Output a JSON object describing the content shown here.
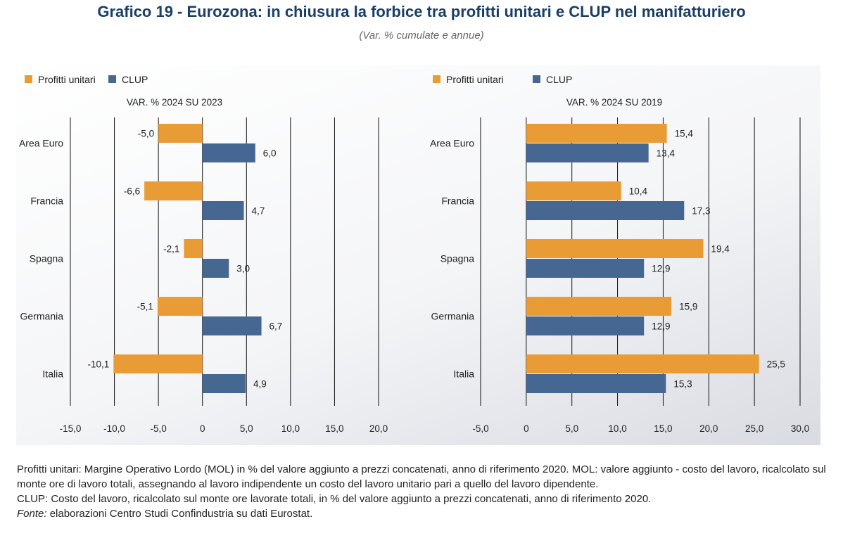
{
  "title": "Grafico 19 - Eurozona: in chiusura la forbice tra profitti unitari e CLUP nel manifatturiero",
  "subtitle": "(Var. % cumulate e annue)",
  "colors": {
    "profitti": "#e99b36",
    "clup": "#466792",
    "grid": "#111111"
  },
  "chart_data": [
    {
      "type": "bar",
      "orientation": "horizontal",
      "title": "VAR. % 2024 SU 2023",
      "categories": [
        "Area Euro",
        "Francia",
        "Spagna",
        "Germania",
        "Italia"
      ],
      "series": [
        {
          "name": "Profitti unitari",
          "values": [
            -5.0,
            -6.6,
            -2.1,
            -5.1,
            -10.1
          ],
          "labels": [
            "-5,0",
            "-6,6",
            "-2,1",
            "-5,1",
            "-10,1"
          ]
        },
        {
          "name": "CLUP",
          "values": [
            6.0,
            4.7,
            3.0,
            6.7,
            4.9
          ],
          "labels": [
            "6,0",
            "4,7",
            "3,0",
            "6,7",
            "4,9"
          ]
        }
      ],
      "xlim": [
        -15,
        20
      ],
      "ticks": [
        -15,
        -10,
        -5,
        0,
        5,
        10,
        15,
        20
      ],
      "tick_labels": [
        "-15,0",
        "-10,0",
        "-5,0",
        "0",
        "5,0",
        "10,0",
        "15,0",
        "20,0"
      ],
      "grid": true,
      "legend": "top-left"
    },
    {
      "type": "bar",
      "orientation": "horizontal",
      "title": "VAR. % 2024 SU 2019",
      "categories": [
        "Area Euro",
        "Francia",
        "Spagna",
        "Germania",
        "Italia"
      ],
      "series": [
        {
          "name": "Profitti unitari",
          "values": [
            15.4,
            10.4,
            19.4,
            15.9,
            25.5
          ],
          "labels": [
            "15,4",
            "10,4",
            "19,4",
            "15,9",
            "25,5"
          ]
        },
        {
          "name": "CLUP",
          "values": [
            13.4,
            17.3,
            12.9,
            12.9,
            15.3
          ],
          "labels": [
            "13,4",
            "17,3",
            "12,9",
            "12,9",
            "15,3"
          ]
        }
      ],
      "xlim": [
        -5,
        30
      ],
      "ticks": [
        -5,
        0,
        5,
        10,
        15,
        20,
        25,
        30
      ],
      "tick_labels": [
        "-5,0",
        "0",
        "5,0",
        "10,0",
        "15,0",
        "20,0",
        "25,0",
        "30,0"
      ],
      "grid": true,
      "legend": "top-left"
    }
  ],
  "notes": {
    "line1": "Profitti unitari: Margine Operativo Lordo (MOL) in % del valore aggiunto a prezzi concatenati, anno di riferimento 2020. MOL: valore aggiunto - costo del lavoro, ricalcolato sul monte ore di lavoro totali, assegnando al lavoro indipendente un costo del lavoro unitario pari a quello del lavoro dipendente.",
    "line2": "CLUP: Costo del lavoro, ricalcolato sul monte ore lavorate totali, in % del valore aggiunto a prezzi concatenati, anno di riferimento 2020.",
    "fonte_label": "Fonte:",
    "fonte_text": " elaborazioni Centro Studi Confindustria su dati Eurostat."
  }
}
